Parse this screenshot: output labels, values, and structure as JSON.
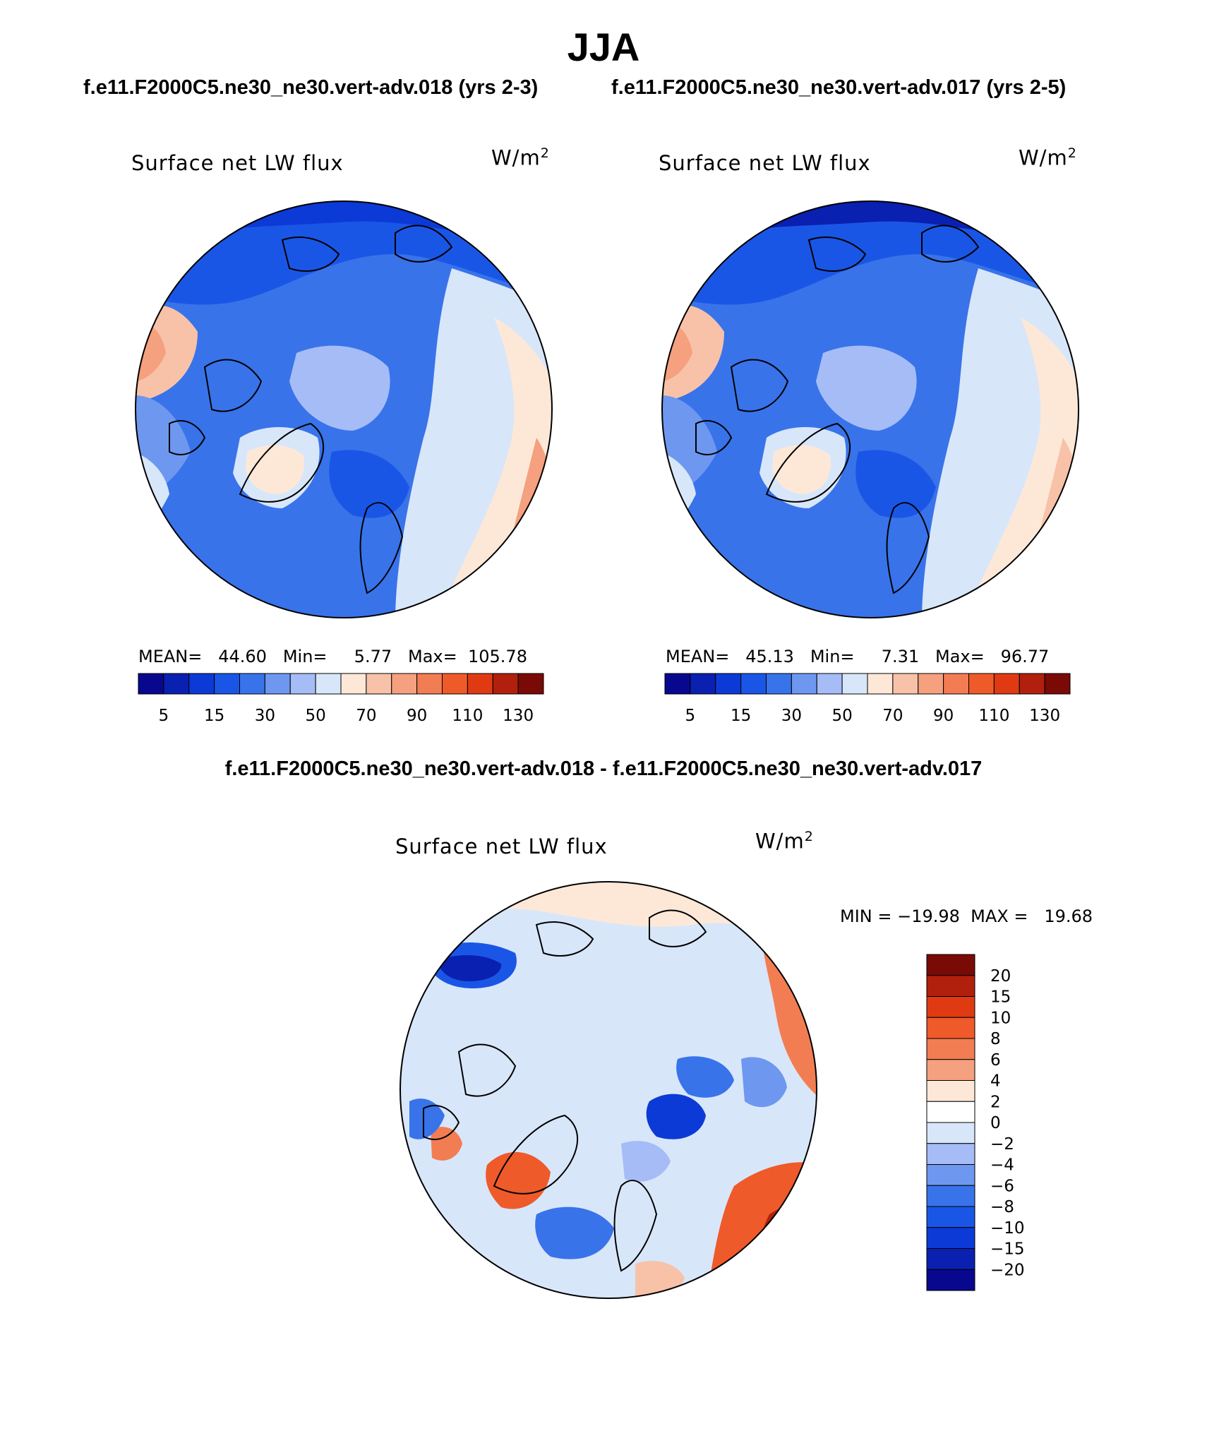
{
  "title": "JJA",
  "subtitles": {
    "left": "f.e11.F2000C5.ne30_ne30.vert-adv.018 (yrs 2-3)",
    "right": "f.e11.F2000C5.ne30_ne30.vert-adv.017 (yrs 2-5)",
    "diff": "f.e11.F2000C5.ne30_ne30.vert-adv.018 - f.e11.F2000C5.ne30_ne30.vert-adv.017"
  },
  "panels": {
    "left": {
      "variable": "Surface net LW flux",
      "units": "W/m",
      "units_sup": "2",
      "stats": "MEAN=   44.60   Min=     5.77   Max=  105.78"
    },
    "right": {
      "variable": "Surface net LW flux",
      "units": "W/m",
      "units_sup": "2",
      "stats": "MEAN=   45.13   Min=     7.31   Max=   96.77"
    },
    "diff": {
      "variable": "Surface net LW flux",
      "units": "W/m",
      "units_sup": "2",
      "stats": "MIN = −19.98  MAX =   19.68"
    }
  },
  "colorbar_main": {
    "colors": [
      "#08088f",
      "#0a20b0",
      "#0c3ad6",
      "#1a56e6",
      "#3873ea",
      "#6e97f0",
      "#a5bcf6",
      "#d8e6fa",
      "#fde8d8",
      "#f8c2a8",
      "#f5a07e",
      "#f27d53",
      "#ef5a2a",
      "#e03a12",
      "#b0200c",
      "#7a0a06"
    ],
    "labels": [
      "5",
      "15",
      "30",
      "50",
      "70",
      "90",
      "110",
      "130"
    ]
  },
  "colorbar_diff": {
    "colors": [
      "#7a0a06",
      "#b0200c",
      "#e03a12",
      "#ef5a2a",
      "#f27d53",
      "#f5a07e",
      "#fde8d8",
      "#ffffff",
      "#d8e6fa",
      "#a5bcf6",
      "#6e97f0",
      "#3873ea",
      "#1a56e6",
      "#0c3ad6",
      "#0a20b0",
      "#08088f"
    ],
    "labels": [
      "20",
      "15",
      "10",
      "8",
      "6",
      "4",
      "2",
      "0",
      "−2",
      "−4",
      "−6",
      "−8",
      "−10",
      "−15",
      "−20"
    ]
  }
}
